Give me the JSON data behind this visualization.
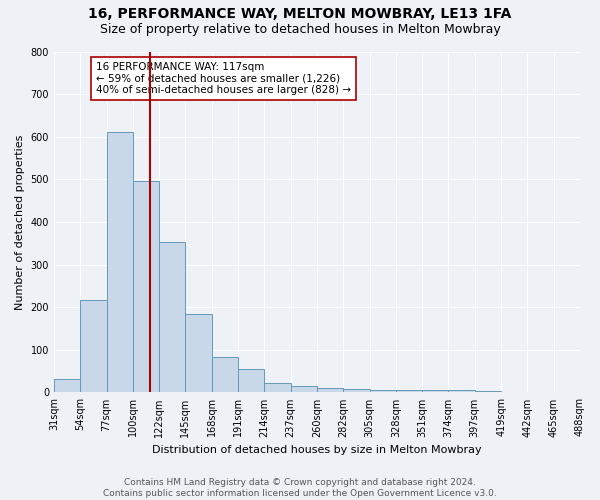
{
  "title": "16, PERFORMANCE WAY, MELTON MOWBRAY, LE13 1FA",
  "subtitle": "Size of property relative to detached houses in Melton Mowbray",
  "xlabel": "Distribution of detached houses by size in Melton Mowbray",
  "ylabel": "Number of detached properties",
  "bin_labels": [
    "31sqm",
    "54sqm",
    "77sqm",
    "100sqm",
    "122sqm",
    "145sqm",
    "168sqm",
    "191sqm",
    "214sqm",
    "237sqm",
    "260sqm",
    "282sqm",
    "305sqm",
    "328sqm",
    "351sqm",
    "374sqm",
    "397sqm",
    "419sqm",
    "442sqm",
    "465sqm",
    "488sqm"
  ],
  "values": [
    32,
    217,
    610,
    497,
    353,
    185,
    83,
    55,
    22,
    16,
    10,
    7,
    6,
    5,
    5,
    5,
    4,
    0,
    0,
    0
  ],
  "bar_color": "#c8d8e8",
  "bar_edge_color": "#6699bb",
  "marker_bar_index": 3.65,
  "marker_line_color": "#aa0000",
  "annotation_text": "16 PERFORMANCE WAY: 117sqm\n← 59% of detached houses are smaller (1,226)\n40% of semi-detached houses are larger (828) →",
  "annotation_box_color": "#ffffff",
  "annotation_box_edge": "#aa0000",
  "ylim": [
    0,
    800
  ],
  "yticks": [
    0,
    100,
    200,
    300,
    400,
    500,
    600,
    700,
    800
  ],
  "footer_line1": "Contains HM Land Registry data © Crown copyright and database right 2024.",
  "footer_line2": "Contains public sector information licensed under the Open Government Licence v3.0.",
  "background_color": "#eef2f7",
  "grid_color": "#ffffff",
  "title_fontsize": 10,
  "subtitle_fontsize": 9,
  "axis_label_fontsize": 8,
  "tick_fontsize": 7,
  "annotation_fontsize": 7.5,
  "footer_fontsize": 6.5
}
